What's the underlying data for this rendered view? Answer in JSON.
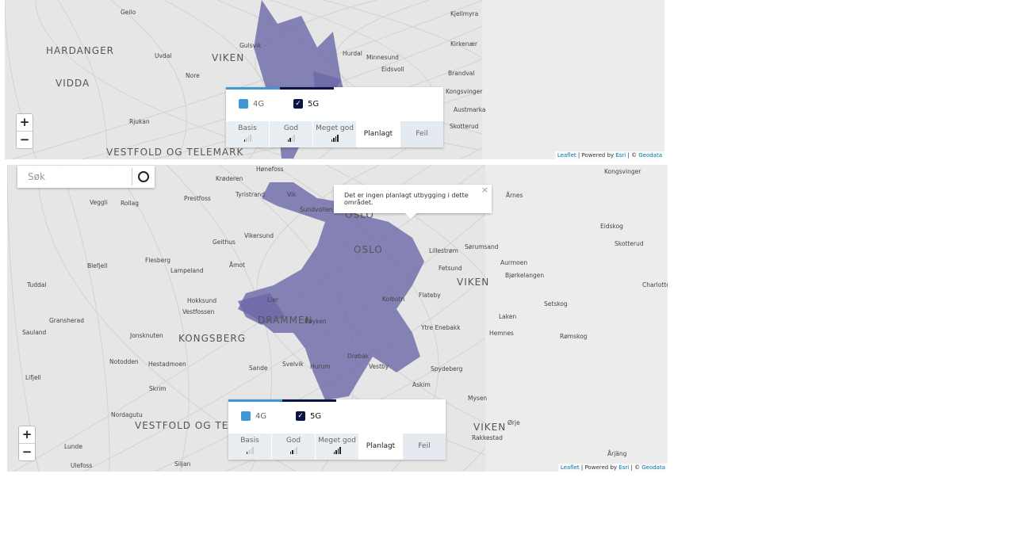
{
  "maps": [
    {
      "places": [
        "Geilo",
        "HARDANGER",
        "VIDDA",
        "Uvdal",
        "Nore",
        "VIKEN",
        "Gulsvik",
        "Rjukan",
        "Hurdal",
        "Minnesund",
        "Eidsvoll",
        "Kjellmyra",
        "Kirkenær",
        "Brandval",
        "Kongsvinger",
        "Austmarka",
        "Skotterud",
        "VESTFOLD OG TELEMARK"
      ],
      "legend": {
        "techs": [
          "4G",
          "5G"
        ],
        "levels": [
          "Basis",
          "God",
          "Meget god",
          "Planlagt",
          "Feil"
        ]
      },
      "zoom": [
        "+",
        "−"
      ],
      "attribution": {
        "leaflet": "Leaflet",
        "powered": " | Powered by ",
        "esri": "Esri",
        "copy": " | © ",
        "geodata": "Geodata"
      }
    },
    {
      "places": [
        "Hønefoss",
        "Kongsvinger",
        "Krøderen",
        "Tyristrand",
        "Prestfoss",
        "Veggli",
        "Rollag",
        "Vik",
        "Sundvollen",
        "OSLO",
        "OSLO",
        "Årnes",
        "Eidskog",
        "Geithus",
        "Vikersund",
        "Flesberg",
        "Lampeland",
        "Blefjell",
        "Åmot",
        "Lillestrøm",
        "Sørumsand",
        "Aurmoen",
        "Fetsund",
        "VIKEN",
        "Bjørkelangen",
        "Skotterud",
        "Charlotte",
        "Tuddal",
        "Hokksund",
        "Vestfossen",
        "DRAMMEN",
        "Lier",
        "Kolbotn",
        "Flateby",
        "Setskog",
        "Gransherad",
        "Sauland",
        "Jonsknuten",
        "KONGSBERG",
        "Røyken",
        "Ytre Enebakk",
        "Laken",
        "Hemnes",
        "Rømskog",
        "Notodden",
        "Hestadmoen",
        "Sande",
        "Svelvik",
        "Hurum",
        "Drøbak",
        "Vestby",
        "Spydeberg",
        "Askim",
        "Lifjell",
        "Skrim",
        "Mysen",
        "Nordagutu",
        "Ørje",
        "VESTFOLD OG TELEMARK",
        "VIKEN",
        "Rakkestad",
        "Lunde",
        "Årjäng",
        "Ulefoss",
        "Siljan"
      ],
      "legend": {
        "techs": [
          "4G",
          "5G"
        ],
        "levels": [
          "Basis",
          "God",
          "Meget god",
          "Planlagt",
          "Feil"
        ]
      },
      "zoom": [
        "+",
        "−"
      ],
      "search": {
        "placeholder": "Søk"
      },
      "popup": {
        "text": "Det er ingen planlagt utbygging i dette området.",
        "close": "×"
      },
      "attribution": {
        "leaflet": "Leaflet",
        "powered": " | Powered by ",
        "esri": "Esri",
        "copy": " | © ",
        "geodata": "Geodata"
      }
    }
  ]
}
